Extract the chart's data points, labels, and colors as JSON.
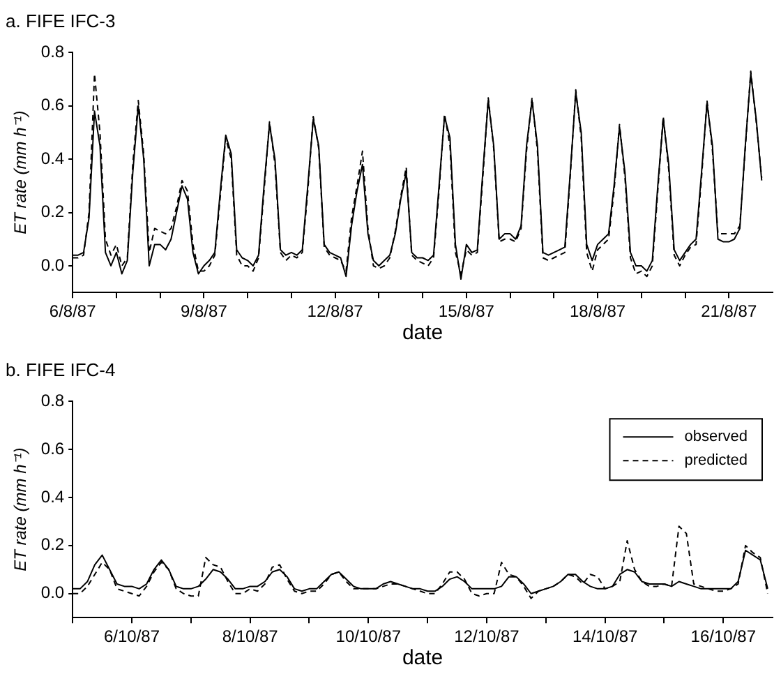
{
  "chart_data": [
    {
      "type": "line",
      "title": "a. FIFE IFC-3",
      "xlabel": "date",
      "ylabel": "ET rate (mm h⁻¹)",
      "grid": false,
      "legend": false,
      "marker": "none",
      "xlim": [
        "1987-08-06T00:00",
        "1987-08-22T00:00"
      ],
      "xticks": [
        {
          "value": "1987-08-06",
          "label": "6/8/87"
        },
        {
          "value": "1987-08-07",
          "label": null
        },
        {
          "value": "1987-08-08",
          "label": null
        },
        {
          "value": "1987-08-09",
          "label": "9/8/87"
        },
        {
          "value": "1987-08-10",
          "label": null
        },
        {
          "value": "1987-08-11",
          "label": null
        },
        {
          "value": "1987-08-12",
          "label": "12/8/87"
        },
        {
          "value": "1987-08-13",
          "label": null
        },
        {
          "value": "1987-08-14",
          "label": null
        },
        {
          "value": "1987-08-15",
          "label": "15/8/87"
        },
        {
          "value": "1987-08-16",
          "label": null
        },
        {
          "value": "1987-08-17",
          "label": null
        },
        {
          "value": "1987-08-18",
          "label": "18/8/87"
        },
        {
          "value": "1987-08-19",
          "label": null
        },
        {
          "value": "1987-08-20",
          "label": null
        },
        {
          "value": "1987-08-21",
          "label": "21/8/87"
        }
      ],
      "ylim": [
        -0.1,
        0.8
      ],
      "yticks": [
        {
          "value": 0,
          "label": "0.0"
        },
        {
          "value": 0.2,
          "label": "0.2"
        },
        {
          "value": 0.4,
          "label": "0.4"
        },
        {
          "value": 0.6,
          "label": "0.6"
        },
        {
          "value": 0.8,
          "label": "0.8"
        }
      ],
      "x": [
        "1987-08-06T00:00",
        "1987-08-06T03:00",
        "1987-08-06T06:00",
        "1987-08-06T09:00",
        "1987-08-06T12:00",
        "1987-08-06T15:00",
        "1987-08-06T18:00",
        "1987-08-06T21:00",
        "1987-08-07T00:00",
        "1987-08-07T03:00",
        "1987-08-07T06:00",
        "1987-08-07T09:00",
        "1987-08-07T12:00",
        "1987-08-07T15:00",
        "1987-08-07T18:00",
        "1987-08-07T21:00",
        "1987-08-08T00:00",
        "1987-08-08T03:00",
        "1987-08-08T06:00",
        "1987-08-08T09:00",
        "1987-08-08T12:00",
        "1987-08-08T15:00",
        "1987-08-08T18:00",
        "1987-08-08T21:00",
        "1987-08-09T00:00",
        "1987-08-09T03:00",
        "1987-08-09T06:00",
        "1987-08-09T09:00",
        "1987-08-09T12:00",
        "1987-08-09T15:00",
        "1987-08-09T18:00",
        "1987-08-09T21:00",
        "1987-08-10T00:00",
        "1987-08-10T03:00",
        "1987-08-10T06:00",
        "1987-08-10T09:00",
        "1987-08-10T12:00",
        "1987-08-10T15:00",
        "1987-08-10T18:00",
        "1987-08-10T21:00",
        "1987-08-11T00:00",
        "1987-08-11T03:00",
        "1987-08-11T06:00",
        "1987-08-11T09:00",
        "1987-08-11T12:00",
        "1987-08-11T15:00",
        "1987-08-11T18:00",
        "1987-08-11T21:00",
        "1987-08-12T00:00",
        "1987-08-12T03:00",
        "1987-08-12T06:00",
        "1987-08-12T09:00",
        "1987-08-12T12:00",
        "1987-08-12T15:00",
        "1987-08-12T18:00",
        "1987-08-12T21:00",
        "1987-08-13T00:00",
        "1987-08-13T03:00",
        "1987-08-13T06:00",
        "1987-08-13T09:00",
        "1987-08-13T12:00",
        "1987-08-13T15:00",
        "1987-08-13T18:00",
        "1987-08-13T21:00",
        "1987-08-14T00:00",
        "1987-08-14T03:00",
        "1987-08-14T06:00",
        "1987-08-14T09:00",
        "1987-08-14T12:00",
        "1987-08-14T15:00",
        "1987-08-14T18:00",
        "1987-08-14T21:00",
        "1987-08-15T00:00",
        "1987-08-15T03:00",
        "1987-08-15T06:00",
        "1987-08-15T09:00",
        "1987-08-15T12:00",
        "1987-08-15T15:00",
        "1987-08-15T18:00",
        "1987-08-15T21:00",
        "1987-08-16T00:00",
        "1987-08-16T03:00",
        "1987-08-16T06:00",
        "1987-08-16T09:00",
        "1987-08-16T12:00",
        "1987-08-16T15:00",
        "1987-08-16T18:00",
        "1987-08-16T21:00",
        "1987-08-17T00:00",
        "1987-08-17T03:00",
        "1987-08-17T06:00",
        "1987-08-17T09:00",
        "1987-08-17T12:00",
        "1987-08-17T15:00",
        "1987-08-17T18:00",
        "1987-08-17T21:00",
        "1987-08-18T00:00",
        "1987-08-18T03:00",
        "1987-08-18T06:00",
        "1987-08-18T09:00",
        "1987-08-18T12:00",
        "1987-08-18T15:00",
        "1987-08-18T18:00",
        "1987-08-18T21:00",
        "1987-08-19T00:00",
        "1987-08-19T03:00",
        "1987-08-19T06:00",
        "1987-08-19T09:00",
        "1987-08-19T12:00",
        "1987-08-19T15:00",
        "1987-08-19T18:00",
        "1987-08-19T21:00",
        "1987-08-20T00:00",
        "1987-08-20T03:00",
        "1987-08-20T06:00",
        "1987-08-20T09:00",
        "1987-08-20T12:00",
        "1987-08-20T15:00",
        "1987-08-20T18:00",
        "1987-08-20T21:00",
        "1987-08-21T00:00",
        "1987-08-21T03:00",
        "1987-08-21T06:00",
        "1987-08-21T09:00",
        "1987-08-21T12:00",
        "1987-08-21T15:00",
        "1987-08-21T18:00"
      ],
      "series": [
        {
          "color": "#000000",
          "line_style": "solid",
          "values": [
            0.04,
            0.04,
            0.05,
            0.18,
            0.58,
            0.45,
            0.05,
            0.0,
            0.05,
            -0.03,
            0.02,
            0.35,
            0.6,
            0.4,
            0.0,
            0.08,
            0.08,
            0.06,
            0.1,
            0.2,
            0.3,
            0.25,
            0.05,
            -0.03,
            0.0,
            0.02,
            0.05,
            0.28,
            0.49,
            0.42,
            0.06,
            0.03,
            0.02,
            0.0,
            0.04,
            0.3,
            0.53,
            0.4,
            0.06,
            0.04,
            0.05,
            0.04,
            0.06,
            0.3,
            0.55,
            0.45,
            0.08,
            0.05,
            0.04,
            0.03,
            -0.04,
            0.15,
            0.28,
            0.38,
            0.12,
            0.02,
            0.0,
            0.02,
            0.04,
            0.12,
            0.25,
            0.35,
            0.05,
            0.03,
            0.03,
            0.02,
            0.04,
            0.3,
            0.56,
            0.48,
            0.08,
            -0.05,
            0.08,
            0.05,
            0.06,
            0.35,
            0.62,
            0.45,
            0.1,
            0.12,
            0.12,
            0.1,
            0.15,
            0.45,
            0.62,
            0.45,
            0.05,
            0.04,
            0.05,
            0.06,
            0.07,
            0.35,
            0.65,
            0.5,
            0.08,
            0.02,
            0.08,
            0.1,
            0.12,
            0.3,
            0.52,
            0.35,
            0.05,
            0.0,
            0.0,
            -0.02,
            0.02,
            0.3,
            0.55,
            0.38,
            0.06,
            0.02,
            0.05,
            0.08,
            0.1,
            0.35,
            0.61,
            0.45,
            0.1,
            0.09,
            0.09,
            0.1,
            0.14,
            0.45,
            0.72,
            0.55,
            0.32
          ]
        },
        {
          "color": "#000000",
          "line_style": "dashed",
          "values": [
            0.03,
            0.03,
            0.04,
            0.2,
            0.72,
            0.5,
            0.1,
            0.04,
            0.08,
            0.0,
            0.03,
            0.38,
            0.62,
            0.42,
            0.05,
            0.14,
            0.13,
            0.12,
            0.14,
            0.22,
            0.32,
            0.28,
            0.08,
            -0.02,
            -0.02,
            0.0,
            0.04,
            0.26,
            0.48,
            0.4,
            0.04,
            0.0,
            0.0,
            -0.02,
            0.03,
            0.28,
            0.54,
            0.38,
            0.05,
            0.02,
            0.04,
            0.03,
            0.05,
            0.28,
            0.56,
            0.44,
            0.07,
            0.04,
            0.03,
            0.02,
            -0.02,
            0.18,
            0.3,
            0.43,
            0.14,
            0.0,
            -0.01,
            0.0,
            0.03,
            0.13,
            0.26,
            0.37,
            0.04,
            0.02,
            0.01,
            0.0,
            0.03,
            0.28,
            0.57,
            0.45,
            0.05,
            -0.03,
            0.06,
            0.04,
            0.05,
            0.33,
            0.63,
            0.44,
            0.09,
            0.1,
            0.1,
            0.09,
            0.14,
            0.43,
            0.63,
            0.43,
            0.03,
            0.02,
            0.03,
            0.04,
            0.05,
            0.34,
            0.66,
            0.48,
            0.05,
            -0.02,
            0.06,
            0.08,
            0.1,
            0.28,
            0.53,
            0.33,
            0.03,
            -0.03,
            -0.02,
            -0.04,
            0.0,
            0.28,
            0.56,
            0.36,
            0.04,
            0.0,
            0.04,
            0.07,
            0.08,
            0.33,
            0.62,
            0.43,
            0.12,
            0.12,
            0.12,
            0.12,
            0.15,
            0.44,
            0.73,
            0.54,
            0.33
          ]
        }
      ]
    },
    {
      "type": "line",
      "title": "b. FIFE IFC-4",
      "xlabel": "date",
      "ylabel": "ET rate (mm h⁻¹)",
      "grid": false,
      "legend": "top right",
      "marker": "none",
      "xlim": [
        "1987-10-05T00:00",
        "1987-10-16T20:00"
      ],
      "xticks": [
        {
          "value": "1987-10-05",
          "label": null
        },
        {
          "value": "1987-10-06",
          "label": "6/10/87"
        },
        {
          "value": "1987-10-07",
          "label": null
        },
        {
          "value": "1987-10-08",
          "label": "8/10/87"
        },
        {
          "value": "1987-10-09",
          "label": null
        },
        {
          "value": "1987-10-10",
          "label": "10/10/87"
        },
        {
          "value": "1987-10-11",
          "label": null
        },
        {
          "value": "1987-10-12",
          "label": "12/10/87"
        },
        {
          "value": "1987-10-13",
          "label": null
        },
        {
          "value": "1987-10-14",
          "label": "14/10/87"
        },
        {
          "value": "1987-10-15",
          "label": null
        },
        {
          "value": "1987-10-16",
          "label": "16/10/87"
        }
      ],
      "ylim": [
        -0.1,
        0.8
      ],
      "yticks": [
        {
          "value": 0,
          "label": "0.0"
        },
        {
          "value": 0.2,
          "label": "0.2"
        },
        {
          "value": 0.4,
          "label": "0.4"
        },
        {
          "value": 0.6,
          "label": "0.6"
        },
        {
          "value": 0.8,
          "label": "0.8"
        }
      ],
      "x": [
        "1987-10-05T00:00",
        "1987-10-05T03:00",
        "1987-10-05T06:00",
        "1987-10-05T09:00",
        "1987-10-05T12:00",
        "1987-10-05T15:00",
        "1987-10-05T18:00",
        "1987-10-05T21:00",
        "1987-10-06T00:00",
        "1987-10-06T03:00",
        "1987-10-06T06:00",
        "1987-10-06T09:00",
        "1987-10-06T12:00",
        "1987-10-06T15:00",
        "1987-10-06T18:00",
        "1987-10-06T21:00",
        "1987-10-07T00:00",
        "1987-10-07T03:00",
        "1987-10-07T06:00",
        "1987-10-07T09:00",
        "1987-10-07T12:00",
        "1987-10-07T15:00",
        "1987-10-07T18:00",
        "1987-10-07T21:00",
        "1987-10-08T00:00",
        "1987-10-08T03:00",
        "1987-10-08T06:00",
        "1987-10-08T09:00",
        "1987-10-08T12:00",
        "1987-10-08T15:00",
        "1987-10-08T18:00",
        "1987-10-08T21:00",
        "1987-10-09T00:00",
        "1987-10-09T03:00",
        "1987-10-09T06:00",
        "1987-10-09T09:00",
        "1987-10-09T12:00",
        "1987-10-09T15:00",
        "1987-10-09T18:00",
        "1987-10-09T21:00",
        "1987-10-10T00:00",
        "1987-10-10T03:00",
        "1987-10-10T06:00",
        "1987-10-10T09:00",
        "1987-10-10T12:00",
        "1987-10-10T15:00",
        "1987-10-10T18:00",
        "1987-10-10T21:00",
        "1987-10-11T00:00",
        "1987-10-11T03:00",
        "1987-10-11T06:00",
        "1987-10-11T09:00",
        "1987-10-11T12:00",
        "1987-10-11T15:00",
        "1987-10-11T18:00",
        "1987-10-11T21:00",
        "1987-10-12T00:00",
        "1987-10-12T03:00",
        "1987-10-12T06:00",
        "1987-10-12T09:00",
        "1987-10-12T12:00",
        "1987-10-12T15:00",
        "1987-10-12T18:00",
        "1987-10-12T21:00",
        "1987-10-13T00:00",
        "1987-10-13T03:00",
        "1987-10-13T06:00",
        "1987-10-13T09:00",
        "1987-10-13T12:00",
        "1987-10-13T15:00",
        "1987-10-13T18:00",
        "1987-10-13T21:00",
        "1987-10-14T00:00",
        "1987-10-14T03:00",
        "1987-10-14T06:00",
        "1987-10-14T09:00",
        "1987-10-14T12:00",
        "1987-10-14T15:00",
        "1987-10-14T18:00",
        "1987-10-14T21:00",
        "1987-10-15T00:00",
        "1987-10-15T03:00",
        "1987-10-15T06:00",
        "1987-10-15T09:00",
        "1987-10-15T12:00",
        "1987-10-15T15:00",
        "1987-10-15T18:00",
        "1987-10-15T21:00",
        "1987-10-16T00:00",
        "1987-10-16T03:00",
        "1987-10-16T06:00",
        "1987-10-16T09:00",
        "1987-10-16T12:00",
        "1987-10-16T15:00",
        "1987-10-16T18:00"
      ],
      "series": [
        {
          "name": "observed",
          "color": "#000000",
          "line_style": "solid",
          "values": [
            0.02,
            0.02,
            0.05,
            0.12,
            0.16,
            0.1,
            0.04,
            0.03,
            0.03,
            0.02,
            0.04,
            0.1,
            0.14,
            0.1,
            0.03,
            0.02,
            0.02,
            0.03,
            0.06,
            0.1,
            0.09,
            0.06,
            0.02,
            0.02,
            0.03,
            0.03,
            0.05,
            0.09,
            0.1,
            0.07,
            0.02,
            0.01,
            0.02,
            0.02,
            0.05,
            0.08,
            0.09,
            0.06,
            0.03,
            0.02,
            0.02,
            0.02,
            0.04,
            0.05,
            0.04,
            0.03,
            0.02,
            0.02,
            0.01,
            0.01,
            0.03,
            0.06,
            0.07,
            0.05,
            0.02,
            0.02,
            0.02,
            0.02,
            0.03,
            0.07,
            0.07,
            0.04,
            0.0,
            0.01,
            0.02,
            0.03,
            0.05,
            0.08,
            0.08,
            0.05,
            0.03,
            0.02,
            0.02,
            0.03,
            0.08,
            0.1,
            0.09,
            0.05,
            0.04,
            0.04,
            0.04,
            0.03,
            0.05,
            0.04,
            0.03,
            0.02,
            0.02,
            0.02,
            0.02,
            0.02,
            0.05,
            0.18,
            0.16,
            0.14,
            0.02
          ]
        },
        {
          "name": "predicted",
          "color": "#000000",
          "line_style": "dashed",
          "values": [
            0.0,
            0.0,
            0.03,
            0.08,
            0.13,
            0.1,
            0.02,
            0.01,
            0.0,
            -0.01,
            0.03,
            0.09,
            0.13,
            0.1,
            0.02,
            0.0,
            -0.01,
            -0.01,
            0.15,
            0.12,
            0.11,
            0.05,
            0.0,
            0.0,
            0.02,
            0.01,
            0.04,
            0.11,
            0.12,
            0.06,
            0.01,
            0.0,
            0.01,
            0.01,
            0.04,
            0.08,
            0.09,
            0.05,
            0.02,
            0.02,
            0.02,
            0.02,
            0.03,
            0.04,
            0.04,
            0.03,
            0.02,
            0.01,
            0.0,
            0.0,
            0.04,
            0.09,
            0.09,
            0.06,
            0.0,
            -0.01,
            0.0,
            0.0,
            0.13,
            0.08,
            0.07,
            0.03,
            -0.02,
            0.01,
            0.02,
            0.03,
            0.05,
            0.08,
            0.07,
            0.04,
            0.08,
            0.07,
            0.02,
            0.03,
            0.05,
            0.22,
            0.1,
            0.05,
            0.03,
            0.03,
            0.04,
            0.03,
            0.28,
            0.25,
            0.04,
            0.03,
            0.02,
            0.01,
            0.01,
            0.02,
            0.04,
            0.2,
            0.17,
            0.15,
            0.0
          ]
        }
      ]
    }
  ]
}
